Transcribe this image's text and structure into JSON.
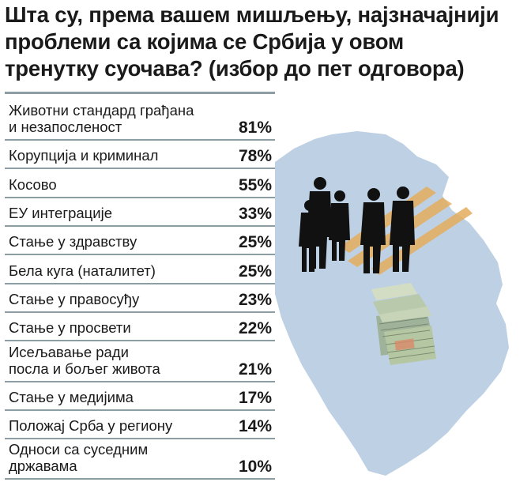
{
  "title": {
    "lines": [
      "Шта су, према вашем мишљењу, најзначајнији",
      "проблеми са којима се Србија у овом",
      "тренутку суочава? (избор до пет одговора)"
    ]
  },
  "colors": {
    "map_fill": "#bed0e3",
    "rule": "#8c9ea4",
    "silhouette": "#111111",
    "stripe": "#e4ad5e"
  },
  "icons": [
    "serbia-map",
    "businessmen-silhouettes",
    "money-stack"
  ],
  "chart_data": {
    "type": "table",
    "title": "Шта су, према вашем мишљењу, најзначајнији проблеми са којима се Србија у овом тренутку суочава? (избор до пет одговора)",
    "unit": "%",
    "rows": [
      {
        "lines": [
          "Животни стандард грађана",
          "и незапосленост"
        ],
        "value": 81,
        "display": "81%"
      },
      {
        "lines": [
          "Корупција и криминал"
        ],
        "value": 78,
        "display": "78%"
      },
      {
        "lines": [
          "Косово"
        ],
        "value": 55,
        "display": "55%"
      },
      {
        "lines": [
          "ЕУ интеграције"
        ],
        "value": 33,
        "display": "33%"
      },
      {
        "lines": [
          "Стање у здравству"
        ],
        "value": 25,
        "display": "25%"
      },
      {
        "lines": [
          "Бела куга (наталитет)"
        ],
        "value": 25,
        "display": "25%"
      },
      {
        "lines": [
          "Стање у правосуђу"
        ],
        "value": 23,
        "display": "23%"
      },
      {
        "lines": [
          "Стање у просвети"
        ],
        "value": 22,
        "display": "22%"
      },
      {
        "lines": [
          "Исељавање ради",
          "посла и бољег живота"
        ],
        "value": 21,
        "display": "21%"
      },
      {
        "lines": [
          "Стање у медијима"
        ],
        "value": 17,
        "display": "17%"
      },
      {
        "lines": [
          "Положај Срба у региону"
        ],
        "value": 14,
        "display": "14%"
      },
      {
        "lines": [
          "Односи са суседним",
          "државама"
        ],
        "value": 10,
        "display": "10%"
      }
    ]
  }
}
